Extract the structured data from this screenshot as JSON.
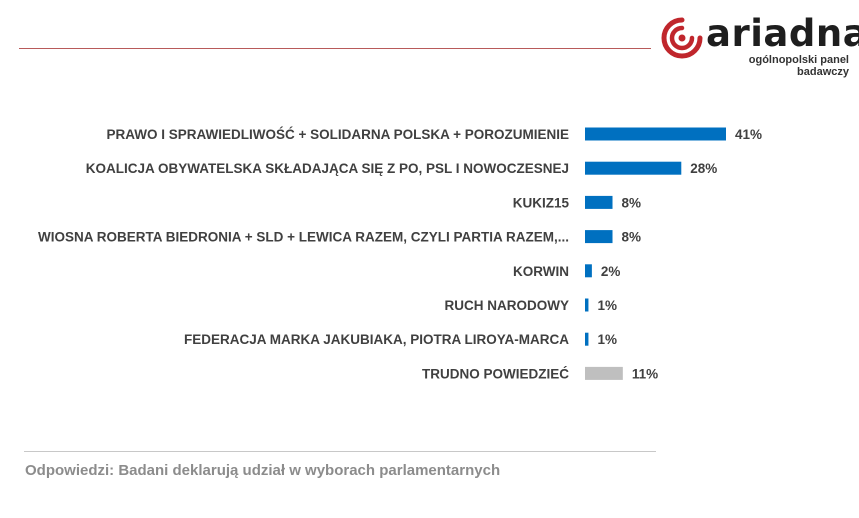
{
  "brand": {
    "name": "ariadna",
    "tagline": "ogólnopolski panel badawczy",
    "colors": {
      "red": "#c0262c",
      "text": "#1e1e1e"
    }
  },
  "footnote": "Odpowiedzi: Badani deklarują udział w wyborach parlamentarnych",
  "chart_data": {
    "type": "bar",
    "orientation": "horizontal",
    "title": "",
    "xlabel": "",
    "ylabel": "",
    "xlim": [
      0,
      41
    ],
    "grid": false,
    "legend": "none",
    "categories": [
      "PRAWO I SPRAWIEDLIWOŚĆ + SOLIDARNA POLSKA + POROZUMIENIE",
      "KOALICJA OBYWATELSKA SKŁADAJĄCA SIĘ Z PO, PSL I NOWOCZESNEJ",
      "KUKIZ15",
      "WIOSNA ROBERTA BIEDRONIA + SLD + LEWICA RAZEM, CZYLI PARTIA RAZEM,...",
      "KORWIN",
      "RUCH NARODOWY",
      "FEDERACJA MARKA JAKUBIAKA, PIOTRA LIROYA-MARCA",
      "TRUDNO POWIEDZIEĆ"
    ],
    "values": [
      41,
      28,
      8,
      8,
      2,
      1,
      1,
      11
    ],
    "value_labels": [
      "41%",
      "28%",
      "8%",
      "8%",
      "2%",
      "1%",
      "1%",
      "11%"
    ],
    "colors": [
      "#0070c0",
      "#0070c0",
      "#0070c0",
      "#0070c0",
      "#0070c0",
      "#0070c0",
      "#0070c0",
      "#bfbfbf"
    ]
  }
}
